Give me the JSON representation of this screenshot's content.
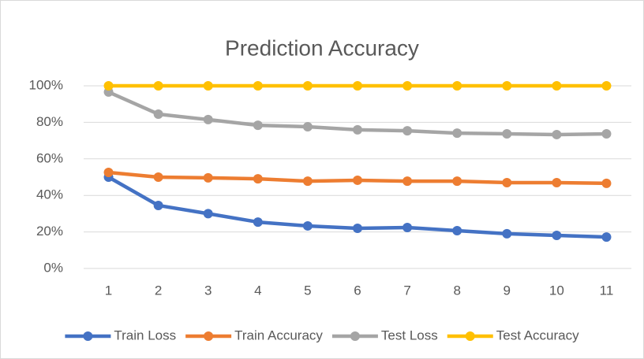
{
  "chart_data": {
    "type": "line",
    "title": "Prediction Accuracy",
    "categories": [
      "1",
      "2",
      "3",
      "4",
      "5",
      "6",
      "7",
      "8",
      "9",
      "10",
      "11"
    ],
    "series": [
      {
        "name": "Train Loss",
        "color": "#4472c4",
        "values": [
          50,
          34.5,
          30,
          25.4,
          23.3,
          22,
          22.4,
          20.7,
          19,
          18.1,
          17.2
        ]
      },
      {
        "name": "Train Accuracy",
        "color": "#ed7d31",
        "values": [
          52.6,
          50,
          49.6,
          49.1,
          47.8,
          48.3,
          47.8,
          47.8,
          47,
          47,
          46.6
        ]
      },
      {
        "name": "Test Loss",
        "color": "#a5a5a5",
        "values": [
          96.6,
          84.5,
          81.5,
          78.4,
          77.6,
          75.9,
          75.4,
          74.1,
          73.7,
          73.3,
          73.7
        ]
      },
      {
        "name": "Test Accuracy",
        "color": "#ffc000",
        "values": [
          100,
          100,
          100,
          100,
          100,
          100,
          100,
          100,
          100,
          100,
          100
        ]
      }
    ],
    "ylim": [
      0,
      100
    ],
    "yticks": [
      {
        "value": 0,
        "label": "0%"
      },
      {
        "value": 20,
        "label": "20%"
      },
      {
        "value": 40,
        "label": "40%"
      },
      {
        "value": 60,
        "label": "60%"
      },
      {
        "value": 80,
        "label": "80%"
      },
      {
        "value": 100,
        "label": "100%"
      }
    ],
    "grid": true,
    "legend": "bottom"
  }
}
